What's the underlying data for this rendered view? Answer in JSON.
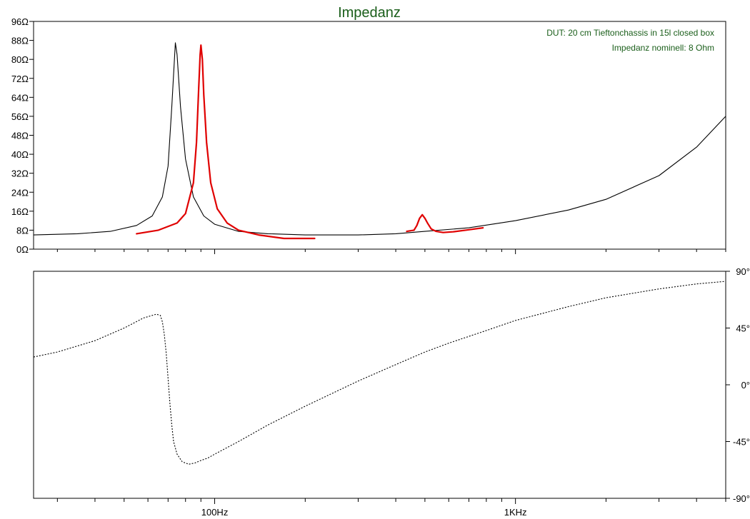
{
  "chart_data": [
    {
      "type": "line",
      "title": "Impedanz",
      "annotations": [
        "DUT: 20 cm Tieftonchassis in 15l closed box",
        "Impedanz nominell: 8 Ohm"
      ],
      "x_scale": "log",
      "xlim": [
        25,
        5000
      ],
      "ylim": [
        0,
        96
      ],
      "y_ticks": [
        "96Ω",
        "88Ω",
        "80Ω",
        "72Ω",
        "64Ω",
        "56Ω",
        "48Ω",
        "40Ω",
        "32Ω",
        "24Ω",
        "16Ω",
        "8Ω",
        "0Ω"
      ],
      "x_ticks": [
        "100Hz",
        "1KHz"
      ],
      "grid": false,
      "series": [
        {
          "color": "#000000",
          "style": "solid",
          "x": [
            25,
            35,
            45,
            55,
            62,
            67,
            70,
            72,
            73.5,
            74,
            75,
            77,
            80,
            85,
            92,
            100,
            120,
            150,
            200,
            300,
            400,
            500,
            700,
            1000,
            1500,
            2000,
            3000,
            4000,
            5000
          ],
          "y": [
            6,
            6.5,
            7.5,
            10,
            14,
            22,
            35,
            60,
            80,
            87,
            82,
            60,
            38,
            22,
            14,
            10.5,
            7.5,
            6.5,
            6,
            6,
            6.5,
            7.5,
            9,
            12,
            16.5,
            21,
            31,
            43,
            56
          ]
        },
        {
          "color": "#e00000",
          "style": "solid",
          "x": [
            55,
            65,
            75,
            80,
            85,
            87,
            88.5,
            89.5,
            90,
            91,
            92,
            94,
            97,
            102,
            110,
            120,
            140,
            170,
            215
          ],
          "y": [
            6.5,
            8,
            11,
            15,
            28,
            45,
            68,
            82,
            86,
            80,
            65,
            45,
            28,
            17,
            11,
            8,
            6,
            4.5,
            4.5
          ]
        },
        {
          "color": "#e00000",
          "style": "solid",
          "x": [
            435,
            460,
            470,
            480,
            490,
            500,
            510,
            525,
            545,
            575,
            620,
            700,
            780
          ],
          "y": [
            7.5,
            8,
            10,
            13,
            14.5,
            13,
            11,
            8.5,
            7.5,
            7,
            7.3,
            8.2,
            9
          ]
        }
      ]
    },
    {
      "type": "line",
      "x_scale": "log",
      "xlim": [
        25,
        5000
      ],
      "ylim": [
        -90,
        90
      ],
      "y_ticks": [
        "90°",
        "45°",
        "0°",
        "-45°",
        "-90°"
      ],
      "x_ticks": [
        "100Hz",
        "1KHz"
      ],
      "grid": false,
      "series": [
        {
          "color": "#000000",
          "style": "dotted",
          "x": [
            25,
            30,
            40,
            50,
            58,
            62,
            64,
            66,
            67,
            68,
            69,
            70,
            71,
            72,
            73,
            75,
            78,
            82,
            86,
            90,
            95,
            100,
            120,
            150,
            200,
            300,
            400,
            500,
            600,
            800,
            1000,
            1500,
            2000,
            3000,
            4000,
            5000
          ],
          "y": [
            22,
            26,
            35,
            45,
            53,
            55,
            56,
            55,
            50,
            40,
            25,
            5,
            -15,
            -32,
            -45,
            -55,
            -61,
            -63,
            -62,
            -60,
            -58,
            -55,
            -45,
            -32,
            -17,
            3,
            16,
            26,
            33,
            43,
            51,
            62,
            69,
            76,
            80,
            82
          ]
        }
      ]
    }
  ]
}
